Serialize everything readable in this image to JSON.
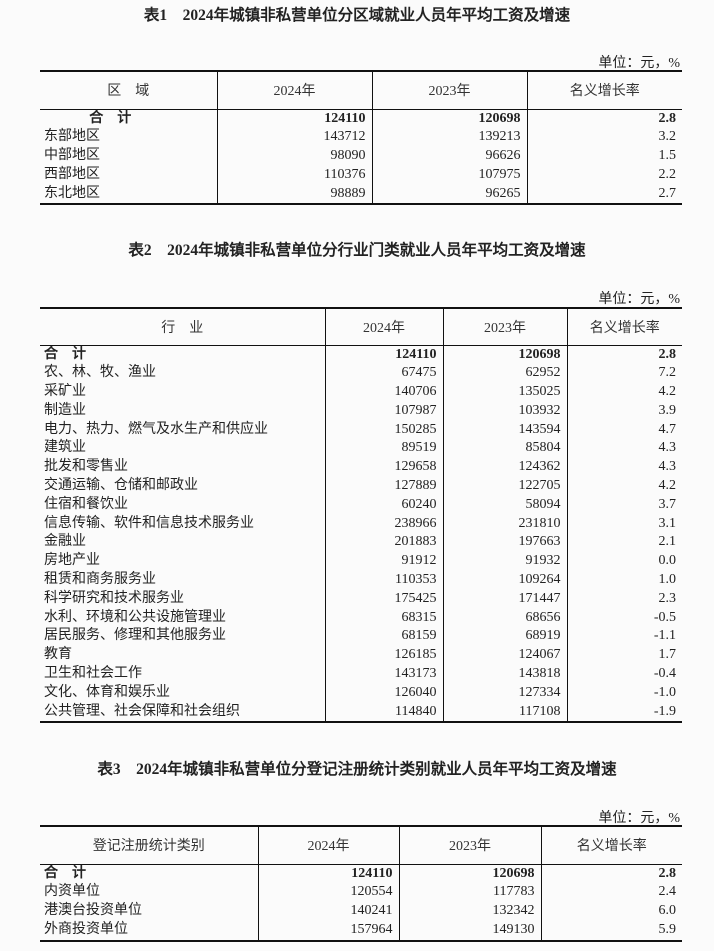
{
  "unit_label": "单位：元，%",
  "tables": [
    {
      "title": "表1　2024年城镇非私营单位分区域就业人员年平均工资及增速",
      "headers": [
        "区　域",
        "2024年",
        "2023年",
        "名义增长率"
      ],
      "rows": [
        [
          "合　计",
          "124110",
          "120698",
          "2.8"
        ],
        [
          "东部地区",
          "143712",
          "139213",
          "3.2"
        ],
        [
          "中部地区",
          "98090",
          "96626",
          "1.5"
        ],
        [
          "西部地区",
          "110376",
          "107975",
          "2.2"
        ],
        [
          "东北地区",
          "98889",
          "96265",
          "2.7"
        ]
      ]
    },
    {
      "title": "表2　2024年城镇非私营单位分行业门类就业人员年平均工资及增速",
      "headers": [
        "行　业",
        "2024年",
        "2023年",
        "名义增长率"
      ],
      "rows": [
        [
          "合　计",
          "124110",
          "120698",
          "2.8"
        ],
        [
          "农、林、牧、渔业",
          "67475",
          "62952",
          "7.2"
        ],
        [
          "采矿业",
          "140706",
          "135025",
          "4.2"
        ],
        [
          "制造业",
          "107987",
          "103932",
          "3.9"
        ],
        [
          "电力、热力、燃气及水生产和供应业",
          "150285",
          "143594",
          "4.7"
        ],
        [
          "建筑业",
          "89519",
          "85804",
          "4.3"
        ],
        [
          "批发和零售业",
          "129658",
          "124362",
          "4.3"
        ],
        [
          "交通运输、仓储和邮政业",
          "127889",
          "122705",
          "4.2"
        ],
        [
          "住宿和餐饮业",
          "60240",
          "58094",
          "3.7"
        ],
        [
          "信息传输、软件和信息技术服务业",
          "238966",
          "231810",
          "3.1"
        ],
        [
          "金融业",
          "201883",
          "197663",
          "2.1"
        ],
        [
          "房地产业",
          "91912",
          "91932",
          "0.0"
        ],
        [
          "租赁和商务服务业",
          "110353",
          "109264",
          "1.0"
        ],
        [
          "科学研究和技术服务业",
          "175425",
          "171447",
          "2.3"
        ],
        [
          "水利、环境和公共设施管理业",
          "68315",
          "68656",
          "-0.5"
        ],
        [
          "居民服务、修理和其他服务业",
          "68159",
          "68919",
          "-1.1"
        ],
        [
          "教育",
          "126185",
          "124067",
          "1.7"
        ],
        [
          "卫生和社会工作",
          "143173",
          "143818",
          "-0.4"
        ],
        [
          "文化、体育和娱乐业",
          "126040",
          "127334",
          "-1.0"
        ],
        [
          "公共管理、社会保障和社会组织",
          "114840",
          "117108",
          "-1.9"
        ]
      ]
    },
    {
      "title": "表3　2024年城镇非私营单位分登记注册统计类别就业人员年平均工资及增速",
      "headers": [
        "登记注册统计类别",
        "2024年",
        "2023年",
        "名义增长率"
      ],
      "rows": [
        [
          "合　计",
          "124110",
          "120698",
          "2.8"
        ],
        [
          "内资单位",
          "120554",
          "117783",
          "2.4"
        ],
        [
          "港澳台投资单位",
          "140241",
          "132342",
          "6.0"
        ],
        [
          "外商投资单位",
          "157964",
          "149130",
          "5.9"
        ]
      ]
    }
  ]
}
